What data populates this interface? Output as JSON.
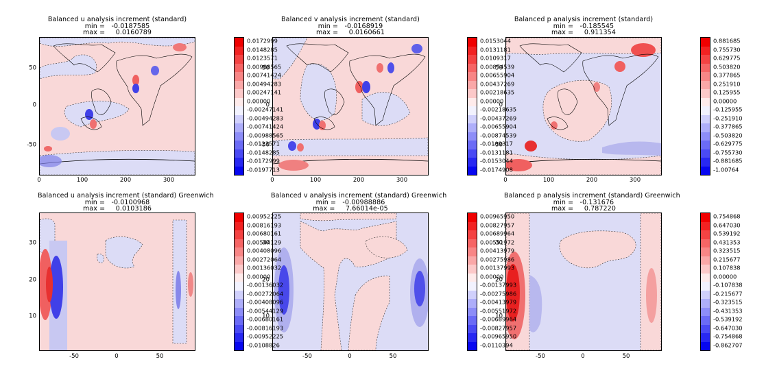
{
  "colors": {
    "pos_max": "#f00000",
    "neg_max": "#0000f0",
    "neutral": "#ffffff"
  },
  "chart_data": [
    {
      "type": "heatmap",
      "title": "Balanced u analysis increment (standard)",
      "min_label": "min =",
      "min_value": "-0.0187585",
      "max_label": "max =",
      "max_value": "0.0160789",
      "x_ticks": [
        "0",
        "100",
        "200",
        "300"
      ],
      "y_ticks": [
        "50",
        "0",
        "-50"
      ],
      "xlim": [
        0,
        360
      ],
      "ylim": [
        -90,
        90
      ],
      "colorbar": [
        "0.0172999",
        "0.0148285",
        "0.0123571",
        "0.00988565",
        "0.00741424",
        "0.00494283",
        "0.00247141",
        "0.00000",
        "-0.00247141",
        "-0.00494283",
        "-0.00741424",
        "-0.00988565",
        "-0.0123571",
        "-0.0148285",
        "-0.0172999",
        "-0.0197713"
      ]
    },
    {
      "type": "heatmap",
      "title": "Balanced v analysis increment (standard)",
      "min_label": "min =",
      "min_value": "-0.0168919",
      "max_label": "max =",
      "max_value": "0.0160661",
      "x_ticks": [
        "0",
        "100",
        "200",
        "300"
      ],
      "y_ticks": [
        "50",
        "0",
        "-50"
      ],
      "xlim": [
        0,
        360
      ],
      "ylim": [
        -90,
        90
      ],
      "colorbar": [
        "0.0153044",
        "0.0131181",
        "0.0109317",
        "0.00874539",
        "0.00655904",
        "0.00437269",
        "0.00218635",
        "0.00000",
        "-0.00218635",
        "-0.00437269",
        "-0.00655904",
        "-0.00874539",
        "-0.0109317",
        "-0.0131181",
        "-0.0153044",
        "-0.0174908"
      ]
    },
    {
      "type": "heatmap",
      "title": "Balanced p analysis increment (standard)",
      "min_label": "min =",
      "min_value": "-0.185545",
      "max_label": "max =",
      "max_value": "0.911354",
      "x_ticks": [
        "0",
        "100",
        "200",
        "300"
      ],
      "y_ticks": [
        "50",
        "0",
        "-50"
      ],
      "xlim": [
        0,
        360
      ],
      "ylim": [
        -90,
        90
      ],
      "colorbar": [
        "0.881685",
        "0.755730",
        "0.629775",
        "0.503820",
        "0.377865",
        "0.251910",
        "0.125955",
        "0.00000",
        "-0.125955",
        "-0.251910",
        "-0.377865",
        "-0.503820",
        "-0.629775",
        "-0.755730",
        "-0.881685",
        "-1.00764"
      ]
    },
    {
      "type": "heatmap",
      "title": "Balanced u analysis increment (standard) Greenwich",
      "min_label": "min =",
      "min_value": "-0.0100968",
      "max_label": "max =",
      "max_value": "0.0103186",
      "x_ticks": [
        "-50",
        "0",
        "50"
      ],
      "y_ticks": [
        "30",
        "20",
        "10"
      ],
      "xlim": [
        -90,
        90
      ],
      "ylim": [
        1,
        38
      ],
      "colorbar": [
        "0.00952225",
        "0.00816193",
        "0.00680161",
        "0.00544129",
        "0.00408096",
        "0.00272064",
        "0.00136032",
        "0.00000",
        "-0.00136032",
        "-0.00272064",
        "-0.00408096",
        "-0.00544129",
        "-0.00680161",
        "-0.00816193",
        "-0.00952225",
        "-0.0108826"
      ]
    },
    {
      "type": "heatmap",
      "title": "Balanced v analysis increment (standard) Greenwich",
      "min_label": "min =",
      "min_value": "-0.00988886",
      "max_label": "max =",
      "max_value": "7.66014e-05",
      "x_ticks": [
        "-50",
        "0",
        "50"
      ],
      "y_ticks": [
        "30",
        "20",
        "10"
      ],
      "xlim": [
        -90,
        90
      ],
      "ylim": [
        1,
        38
      ],
      "colorbar": [
        "0.00965950",
        "0.00827957",
        "0.00689964",
        "0.00551972",
        "0.00413979",
        "0.00275986",
        "0.00137993",
        "0.00000",
        "-0.00137993",
        "-0.00275986",
        "-0.00413979",
        "-0.00551972",
        "-0.00689964",
        "-0.00827957",
        "-0.00965950",
        "-0.0110394"
      ]
    },
    {
      "type": "heatmap",
      "title": "Balanced p analysis increment (standard) Greenwich",
      "min_label": "min =",
      "min_value": "-0.131676",
      "max_label": "max =",
      "max_value": "0.787220",
      "x_ticks": [
        "-50",
        "0",
        "50"
      ],
      "y_ticks": [
        "30",
        "20",
        "10"
      ],
      "xlim": [
        -90,
        90
      ],
      "ylim": [
        1,
        38
      ],
      "colorbar": [
        "0.754868",
        "0.647030",
        "0.539192",
        "0.431353",
        "0.323515",
        "0.215677",
        "0.107838",
        "0.00000",
        "-0.107838",
        "-0.215677",
        "-0.323515",
        "-0.431353",
        "-0.539192",
        "-0.647030",
        "-0.754868",
        "-0.862707"
      ]
    }
  ]
}
